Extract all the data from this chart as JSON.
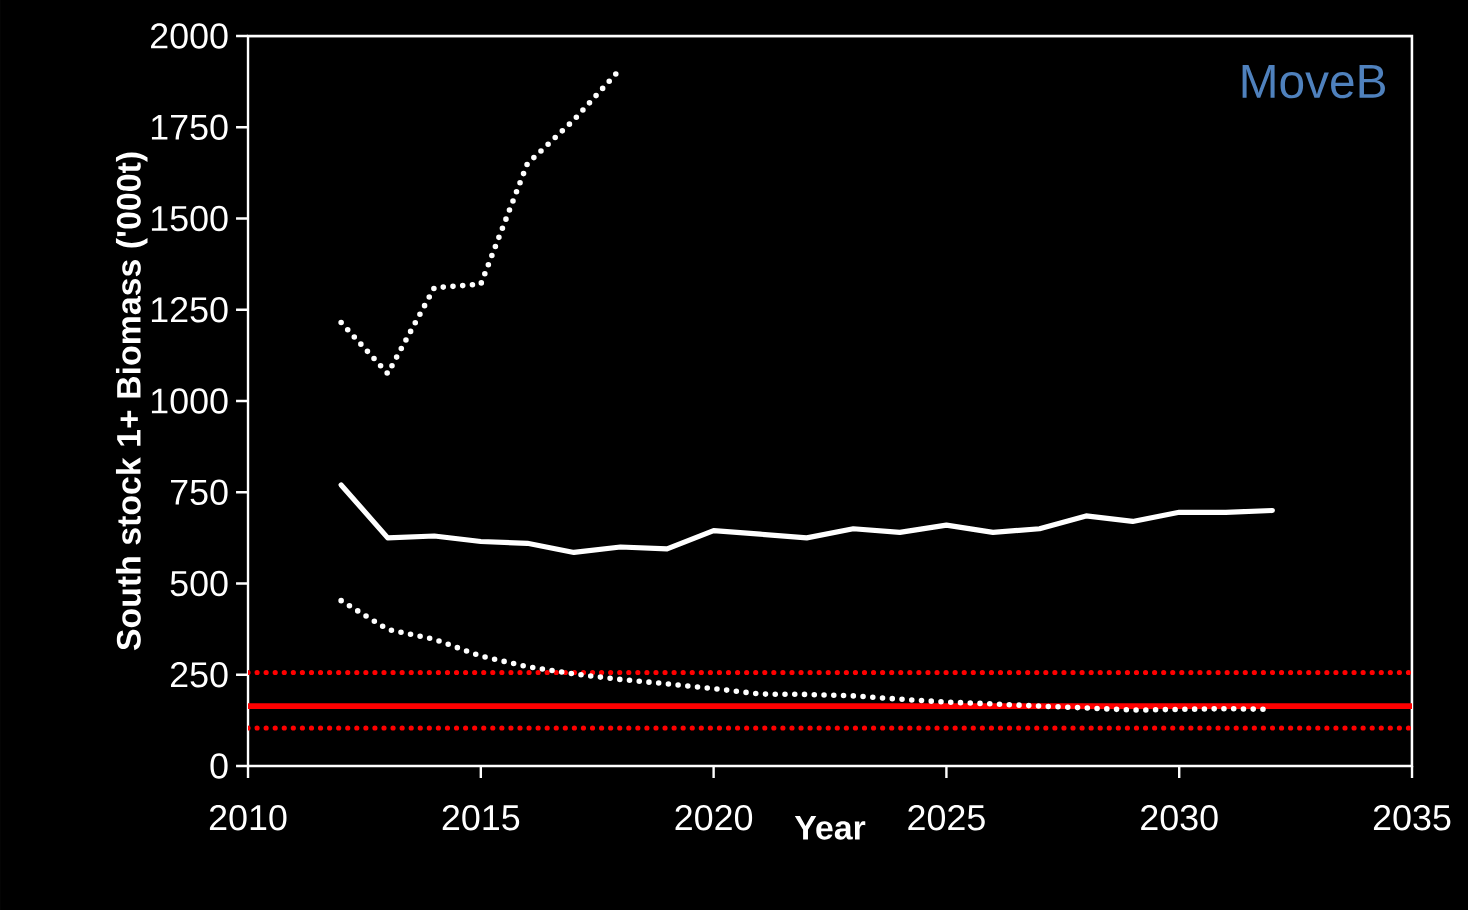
{
  "chart_data": {
    "type": "line",
    "title": "MoveB",
    "xlabel": "Year",
    "ylabel": "South  stock 1+ Biomass ('000t)",
    "x": [
      2012,
      2013,
      2014,
      2015,
      2016,
      2017,
      2018,
      2019,
      2020,
      2021,
      2022,
      2023,
      2024,
      2025,
      2026,
      2027,
      2028,
      2029,
      2030,
      2031,
      2032
    ],
    "series": [
      {
        "color": "#ffffff",
        "line_style": "solid",
        "values": [
          770,
          625,
          630,
          615,
          610,
          585,
          600,
          595,
          645,
          635,
          625,
          650,
          640,
          660,
          640,
          650,
          685,
          670,
          695,
          695,
          700
        ]
      },
      {
        "color": "#ffffff",
        "line_style": "dotted",
        "x": [
          2012,
          2013,
          2014,
          2015,
          2016,
          2017,
          2018
        ],
        "values": [
          1215,
          1075,
          1310,
          1320,
          1650,
          1770,
          1910
        ]
      },
      {
        "color": "#ffffff",
        "line_style": "dotted",
        "values": [
          453,
          374,
          347,
          301,
          272,
          252,
          237,
          225,
          212,
          197,
          196,
          192,
          183,
          175,
          170,
          164,
          159,
          153,
          155,
          157,
          155
        ]
      }
    ],
    "ref_lines": [
      {
        "axis": "y",
        "value": 164,
        "color": "#ff0000",
        "line_style": "solid"
      },
      {
        "axis": "y",
        "value": 256,
        "color": "#ff0000",
        "line_style": "dotted"
      },
      {
        "axis": "y",
        "value": 104,
        "color": "#ff0000",
        "line_style": "dotted"
      }
    ],
    "xlim": [
      2010,
      2035
    ],
    "xticks": [
      2010,
      2015,
      2020,
      2025,
      2030,
      2035
    ],
    "ylim": [
      0,
      2000
    ],
    "yticks": [
      0,
      250,
      500,
      750,
      1000,
      1250,
      1500,
      1750,
      2000
    ],
    "grid": false
  }
}
